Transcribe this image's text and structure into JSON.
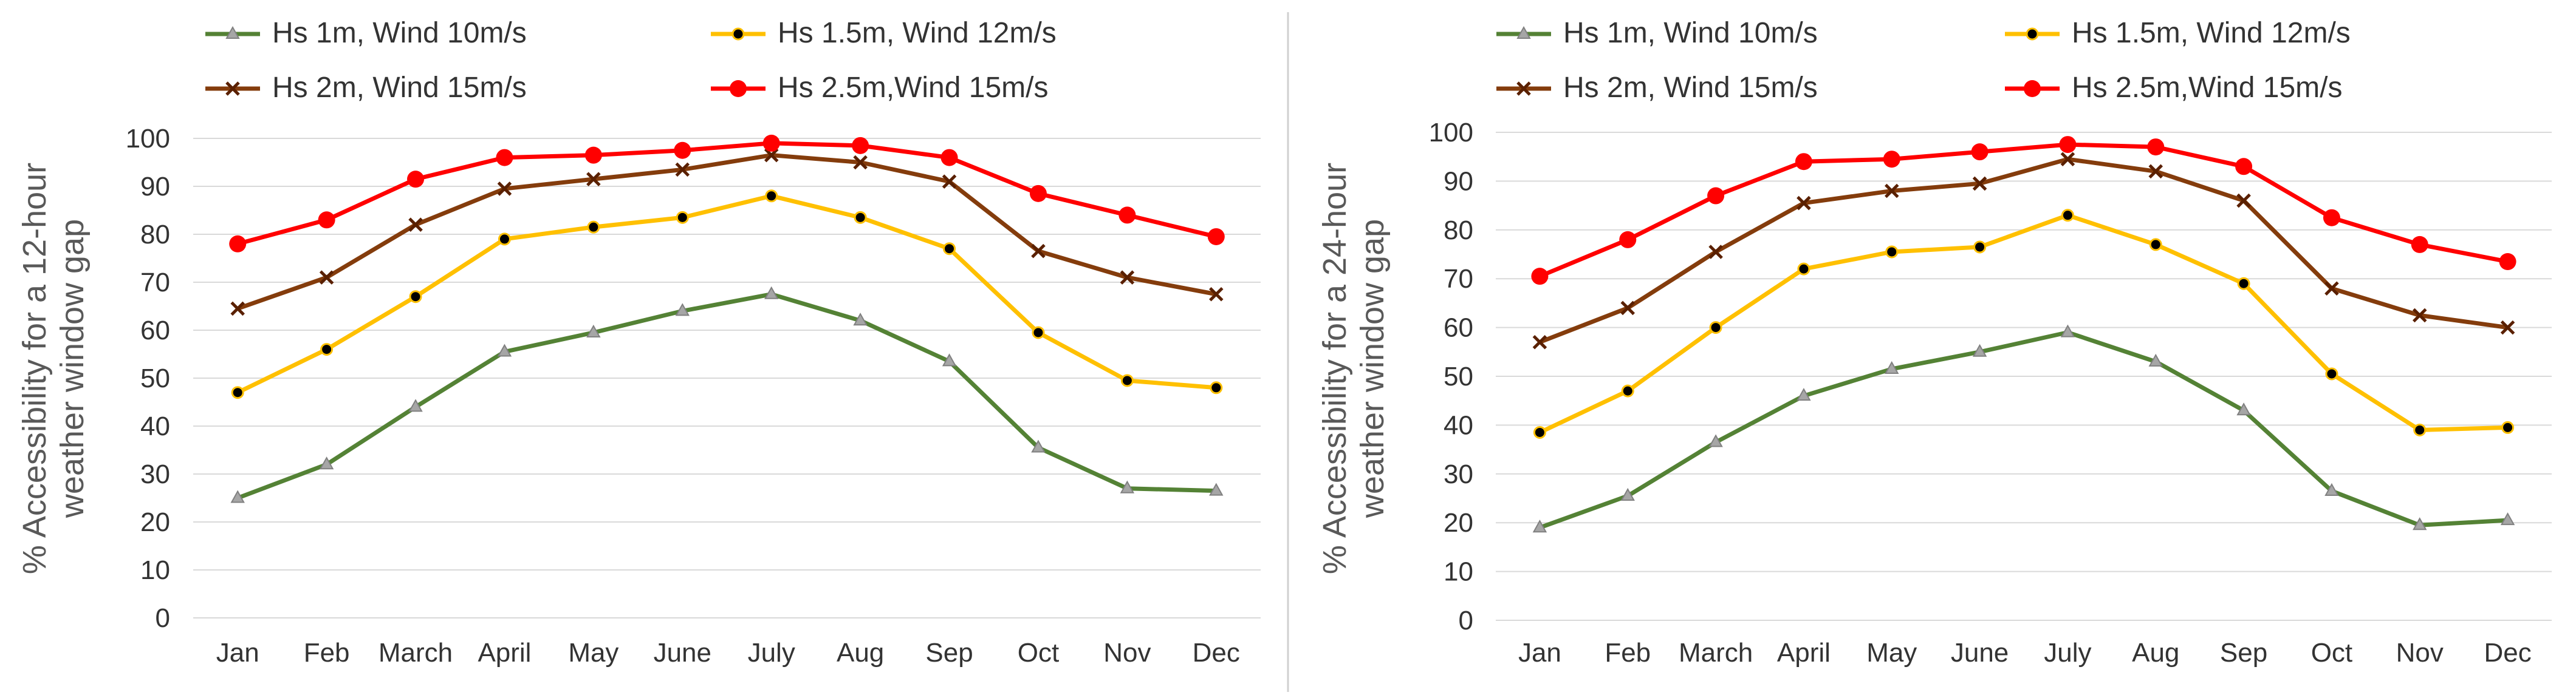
{
  "series_styles": [
    {
      "name": "Hs 1m, Wind 10m/s",
      "color": "#548235",
      "marker": "triangle"
    },
    {
      "name": "Hs 1.5m, Wind 12m/s",
      "color": "#FFC000",
      "marker": "circle"
    },
    {
      "name": "Hs 2m, Wind 15m/s",
      "color": "#843C0C",
      "marker": "x"
    },
    {
      "name": "Hs 2.5m,Wind 15m/s",
      "color": "#FF0000",
      "marker": "circle"
    }
  ],
  "chart_data": [
    {
      "type": "line",
      "title": "",
      "xlabel": "",
      "ylabel": "% Accessibility for a 12-hour weather window gap",
      "ylabel_lines": [
        "% Accessibility for a 12-hour",
        "weather window gap"
      ],
      "ylim": [
        0,
        100
      ],
      "yticks": [
        "0",
        "10",
        "20",
        "30",
        "40",
        "50",
        "60",
        "70",
        "80",
        "90",
        "100"
      ],
      "grid": "horizontal",
      "legend": "top",
      "categories": [
        "Jan",
        "Feb",
        "March",
        "April",
        "May",
        "June",
        "July",
        "Aug",
        "Sep",
        "Oct",
        "Nov",
        "Dec"
      ],
      "series": [
        {
          "name": "Hs 1m, Wind 10m/s",
          "values": [
            25,
            32,
            44,
            55.5,
            59.5,
            64,
            67.5,
            62,
            53.5,
            35.5,
            27,
            26.5
          ]
        },
        {
          "name": "Hs 1.5m, Wind 12m/s",
          "values": [
            47,
            56,
            67,
            79,
            81.5,
            83.5,
            88,
            83.5,
            77,
            59.5,
            49.5,
            48
          ]
        },
        {
          "name": "Hs 2m, Wind 15m/s",
          "values": [
            64.5,
            71,
            82,
            89.5,
            91.5,
            93.5,
            96.5,
            95,
            91,
            76.5,
            71,
            67.5
          ]
        },
        {
          "name": "Hs 2.5m,Wind 15m/s",
          "values": [
            78,
            83,
            91.5,
            96,
            96.5,
            97.5,
            99,
            98.5,
            96,
            88.5,
            84,
            79.5
          ]
        }
      ]
    },
    {
      "type": "line",
      "title": "",
      "xlabel": "",
      "ylabel": "% Accessibility for a 24-hour weather window gap",
      "ylabel_lines": [
        "% Accessibility for a 24-hour",
        "weather window gap"
      ],
      "ylim": [
        0,
        100
      ],
      "yticks": [
        "0",
        "10",
        "20",
        "30",
        "40",
        "50",
        "60",
        "70",
        "80",
        "90",
        "100"
      ],
      "grid": "horizontal",
      "legend": "top",
      "categories": [
        "Jan",
        "Feb",
        "March",
        "April",
        "May",
        "June",
        "July",
        "Aug",
        "Sep",
        "Oct",
        "Nov",
        "Dec"
      ],
      "series": [
        {
          "name": "Hs 1m, Wind 10m/s",
          "values": [
            19,
            25.5,
            36.5,
            46,
            51.5,
            55,
            59,
            53,
            43,
            26.5,
            19.5,
            20.5
          ]
        },
        {
          "name": "Hs 1.5m, Wind 12m/s",
          "values": [
            38.5,
            47,
            60,
            72,
            75.5,
            76.5,
            83,
            77,
            69,
            50.5,
            39,
            39.5
          ]
        },
        {
          "name": "Hs 2m, Wind 15m/s",
          "values": [
            57,
            64,
            75.5,
            85.5,
            88,
            89.5,
            94.5,
            92,
            86,
            68,
            62.5,
            60
          ]
        },
        {
          "name": "Hs 2.5m,Wind 15m/s",
          "values": [
            70.5,
            78,
            87,
            94,
            94.5,
            96,
            97.5,
            97,
            93,
            82.5,
            77,
            73.5
          ]
        }
      ]
    }
  ]
}
